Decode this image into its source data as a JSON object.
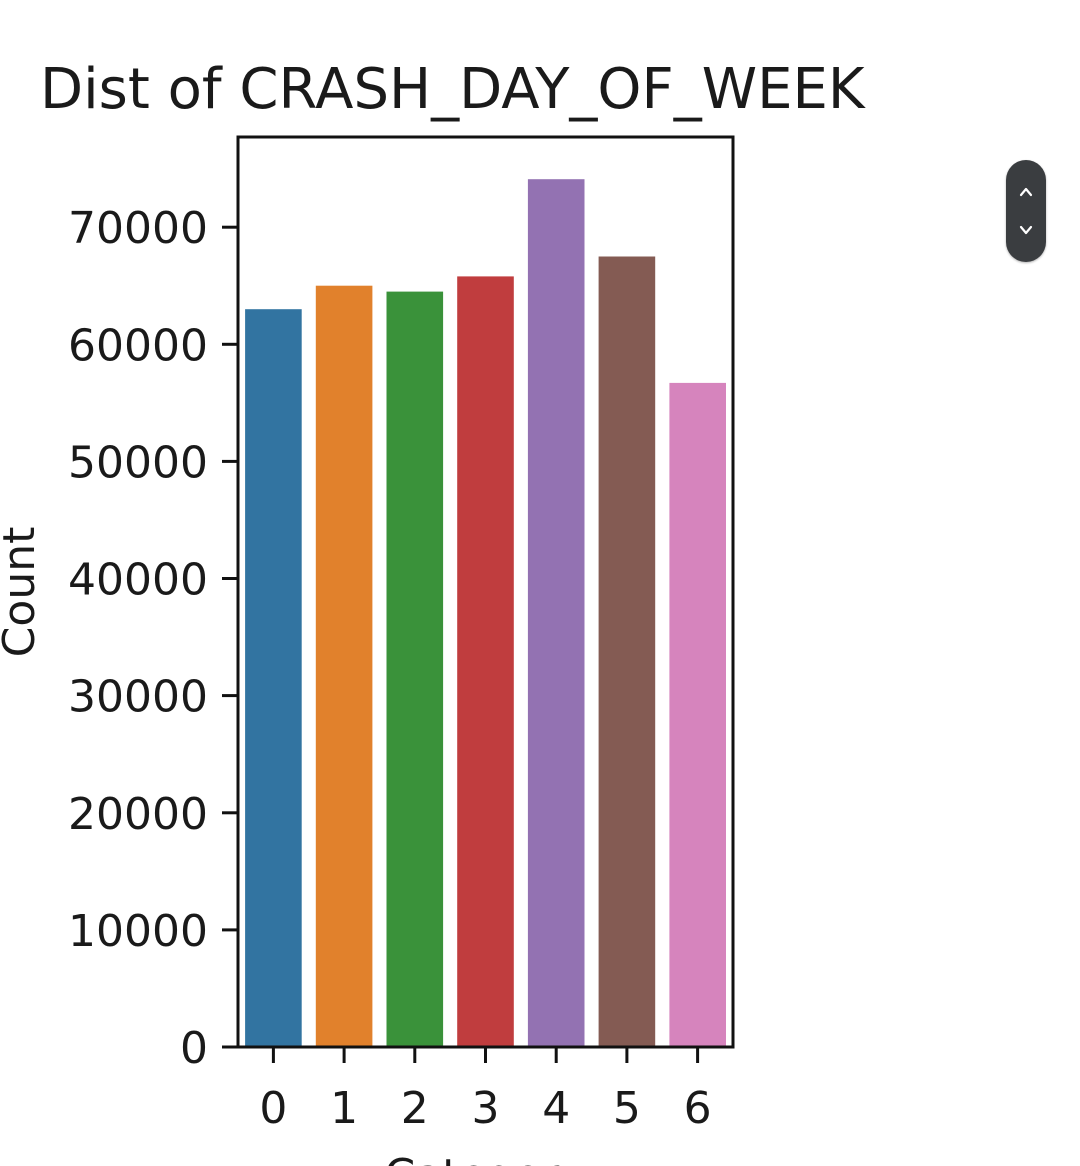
{
  "chart_data": {
    "type": "bar",
    "title": "Dist of CRASH_DAY_OF_WEEK",
    "xlabel": "Category",
    "ylabel": "Count",
    "categories": [
      "0",
      "1",
      "2",
      "3",
      "4",
      "5",
      "6"
    ],
    "values": [
      63000,
      65000,
      64500,
      65800,
      74100,
      67500,
      56700
    ],
    "colors": [
      "#3274a1",
      "#e1812c",
      "#3a923a",
      "#c03d3e",
      "#9372b2",
      "#845b53",
      "#d684bd"
    ],
    "yticks": [
      0,
      10000,
      20000,
      30000,
      40000,
      50000,
      60000,
      70000
    ],
    "ylim": [
      0,
      77700
    ],
    "grid": false,
    "legend": "none"
  },
  "scroll_widget": {
    "up_icon": "chevron-up-icon",
    "down_icon": "chevron-down-icon"
  }
}
